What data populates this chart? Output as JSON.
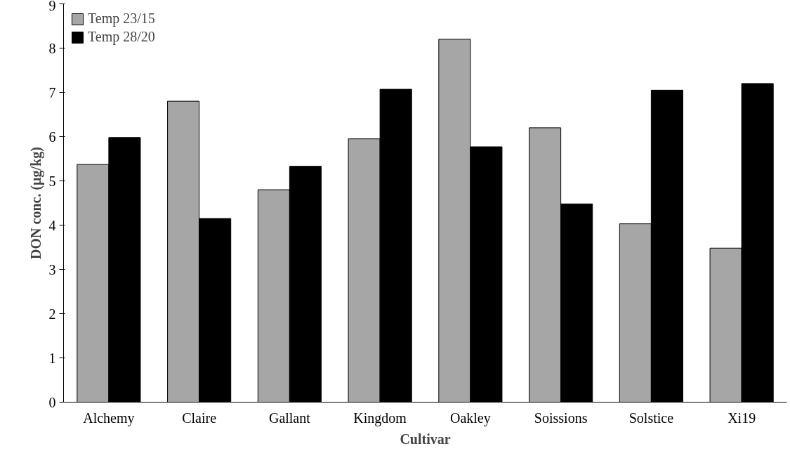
{
  "chart_data": {
    "type": "bar",
    "xlabel": "Cultivar",
    "ylabel": "DON conc. (µg/kg)",
    "categories": [
      "Alchemy",
      "Claire",
      "Gallant",
      "Kingdom",
      "Oakley",
      "Soissions",
      "Solstice",
      "Xi19"
    ],
    "series": [
      {
        "name": "Temp 23/15",
        "color": "#a6a6a6",
        "values": [
          5.37,
          6.8,
          4.8,
          5.95,
          8.2,
          6.2,
          4.03,
          3.48
        ]
      },
      {
        "name": "Temp 28/20",
        "color": "#000000",
        "values": [
          5.98,
          4.15,
          5.33,
          7.07,
          5.77,
          4.48,
          7.05,
          7.2
        ]
      }
    ],
    "ylim": [
      0,
      9
    ],
    "yticks": [
      0,
      1,
      2,
      3,
      4,
      5,
      6,
      7,
      8,
      9
    ],
    "grid": false,
    "legend": "top left"
  }
}
